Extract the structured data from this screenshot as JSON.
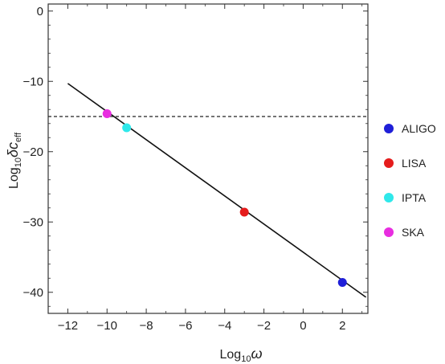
{
  "chart_data": {
    "type": "scatter",
    "xlabel": {
      "base": "Log",
      "sub": "10",
      "var": "ω"
    },
    "ylabel": {
      "base": "Log",
      "sub": "10",
      "var": "δc",
      "varsub": "eff"
    },
    "xlim": [
      -13,
      3.3
    ],
    "ylim": [
      -43,
      1
    ],
    "xticks": [
      -12,
      -10,
      -8,
      -6,
      -4,
      -2,
      0,
      2
    ],
    "yticks": [
      0,
      -10,
      -20,
      -30,
      -40
    ],
    "xtick_labels": [
      "−12",
      "−10",
      "−8",
      "−6",
      "−4",
      "−2",
      "0",
      "2"
    ],
    "ytick_labels": [
      "0",
      "−10",
      "−20",
      "−30",
      "−40"
    ],
    "line": {
      "x": [
        -12,
        3.2
      ],
      "y": [
        -10.3,
        -40.7
      ]
    },
    "threshold": {
      "y": -15
    },
    "points": [
      {
        "name": "ALIGO",
        "x": 2,
        "y": -38.6,
        "color": "#1f1fd8"
      },
      {
        "name": "LISA",
        "x": -3,
        "y": -28.6,
        "color": "#e51c1c"
      },
      {
        "name": "IPTA",
        "x": -9,
        "y": -16.6,
        "color": "#2fe8ea"
      },
      {
        "name": "SKA",
        "x": -10,
        "y": -14.6,
        "color": "#e82de0"
      }
    ],
    "legend": [
      {
        "label": "ALIGO",
        "color": "#1f1fd8"
      },
      {
        "label": "LISA",
        "color": "#e51c1c"
      },
      {
        "label": "IPTA",
        "color": "#2fe8ea"
      },
      {
        "label": "SKA",
        "color": "#e82de0"
      }
    ],
    "legend_position": "right",
    "grid": false
  }
}
